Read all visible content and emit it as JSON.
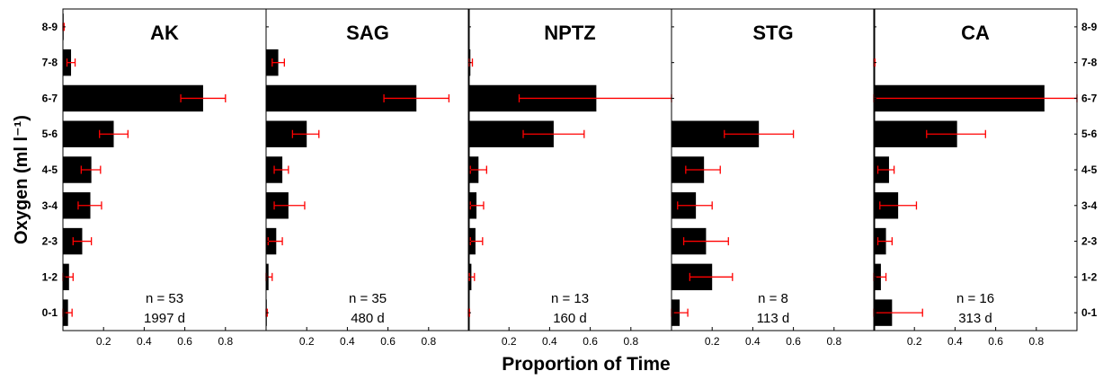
{
  "chart_data": {
    "type": "bar",
    "orientation": "horizontal",
    "ylabel": "Oxygen (ml l⁻¹)",
    "xlabel": "Proportion of Time",
    "categories": [
      "0-1",
      "1-2",
      "2-3",
      "3-4",
      "4-5",
      "5-6",
      "6-7",
      "7-8",
      "8-9"
    ],
    "xlim": [
      0,
      1.0
    ],
    "xticks": [
      0.2,
      0.4,
      0.6,
      0.8
    ],
    "xtick_labels": [
      "0.2",
      "0.4",
      "0.6",
      "0.8"
    ],
    "bar_color": "#000000",
    "error_color": "#ff0000",
    "panels": [
      {
        "title": "AK",
        "n_label": "n = 53",
        "d_label": "1997 d",
        "values": [
          0.025,
          0.03,
          0.095,
          0.135,
          0.14,
          0.25,
          0.69,
          0.04,
          0.003
        ],
        "err_low": [
          0.0,
          0.0,
          0.05,
          0.075,
          0.09,
          0.18,
          0.58,
          0.02,
          0.0
        ],
        "err_high": [
          0.045,
          0.05,
          0.14,
          0.19,
          0.185,
          0.32,
          0.8,
          0.06,
          0.006
        ]
      },
      {
        "title": "SAG",
        "n_label": "n = 35",
        "d_label": "480 d",
        "values": [
          0.003,
          0.012,
          0.05,
          0.11,
          0.08,
          0.2,
          0.74,
          0.06,
          0.0
        ],
        "err_low": [
          0.0,
          0.0,
          0.01,
          0.04,
          0.04,
          0.13,
          0.58,
          0.03,
          0.0
        ],
        "err_high": [
          0.006,
          0.03,
          0.08,
          0.19,
          0.11,
          0.26,
          0.9,
          0.09,
          0.0
        ]
      },
      {
        "title": "NPTZ",
        "n_label": "n = 13",
        "d_label": "160 d",
        "values": [
          0.003,
          0.015,
          0.035,
          0.04,
          0.05,
          0.42,
          0.63,
          0.01,
          0.0
        ],
        "err_low": [
          0.0,
          0.005,
          0.01,
          0.01,
          0.01,
          0.27,
          0.25,
          0.003,
          0.0
        ],
        "err_high": [
          0.006,
          0.03,
          0.07,
          0.075,
          0.09,
          0.57,
          1.0,
          0.02,
          0.0
        ]
      },
      {
        "title": "STG",
        "n_label": "n = 8",
        "d_label": "113 d",
        "values": [
          0.04,
          0.2,
          0.17,
          0.12,
          0.16,
          0.43,
          0.0,
          0.0,
          0.0
        ],
        "err_low": [
          0.0,
          0.09,
          0.06,
          0.03,
          0.07,
          0.26,
          0.0,
          0.0,
          0.0
        ],
        "err_high": [
          0.08,
          0.3,
          0.28,
          0.2,
          0.24,
          0.6,
          0.0,
          0.0,
          0.0
        ]
      },
      {
        "title": "CA",
        "n_label": "n = 16",
        "d_label": "313 d",
        "values": [
          0.09,
          0.035,
          0.06,
          0.12,
          0.075,
          0.41,
          0.84,
          0.003,
          0.0
        ],
        "err_low": [
          0.0,
          0.0,
          0.02,
          0.03,
          0.02,
          0.26,
          0.0,
          0.0,
          0.0
        ],
        "err_high": [
          0.24,
          0.06,
          0.09,
          0.21,
          0.1,
          0.55,
          1.0,
          0.006,
          0.0
        ]
      }
    ]
  }
}
